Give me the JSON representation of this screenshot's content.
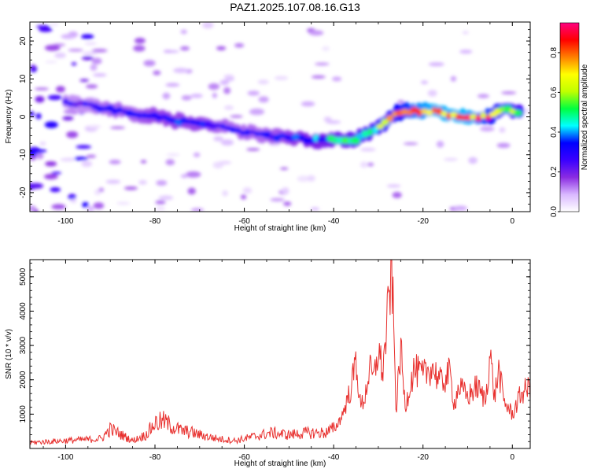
{
  "title": "PAZ1.2025.107.08.16.G13",
  "chart_data": [
    {
      "type": "heatmap",
      "xlabel": "Height of straight line (km)",
      "ylabel": "Frequency (Hz)",
      "xlim": [
        -108,
        4
      ],
      "ylim": [
        -25,
        25
      ],
      "xticks": [
        -100,
        -80,
        -60,
        -40,
        -20,
        0
      ],
      "yticks": [
        -20,
        -10,
        0,
        10,
        20
      ],
      "colorbar": {
        "label": "Normalized spectral amplitude",
        "ticks": [
          0.0,
          0.2,
          0.4,
          0.6,
          0.8
        ],
        "range": [
          0,
          0.95
        ],
        "colors": [
          "#ffffff",
          "#d9b8ff",
          "#8a2be2",
          "#3a00ff",
          "#0000ff",
          "#00ffff",
          "#00ff40",
          "#c0ff00",
          "#ffff00",
          "#ff8000",
          "#ff0000",
          "#ff0080"
        ]
      },
      "ridge": {
        "x": [
          -100,
          -95,
          -90,
          -85,
          -80,
          -75,
          -70,
          -65,
          -60,
          -55,
          -50,
          -45,
          -40,
          -35,
          -30,
          -26,
          -22,
          -18,
          -14,
          -10,
          -5,
          -2,
          2
        ],
        "y": [
          4,
          3,
          2,
          1,
          0,
          -1,
          -2,
          -2.5,
          -4,
          -5,
          -5.5,
          -6,
          -6,
          -6,
          -3,
          1,
          1.5,
          1.5,
          0.5,
          0,
          0,
          2,
          1
        ],
        "amplitude": [
          0.25,
          0.25,
          0.3,
          0.3,
          0.35,
          0.35,
          0.35,
          0.3,
          0.3,
          0.3,
          0.35,
          0.4,
          0.45,
          0.5,
          0.55,
          0.75,
          0.85,
          0.9,
          0.9,
          0.9,
          0.8,
          0.6,
          0.55
        ]
      }
    },
    {
      "type": "line",
      "xlabel": "Height of straight line (km)",
      "ylabel": "SNR (10 * v/v)",
      "xlim": [
        -108,
        4
      ],
      "ylim": [
        0,
        5500
      ],
      "xticks": [
        -100,
        -80,
        -60,
        -40,
        -20,
        0
      ],
      "yticks": [
        1000,
        2000,
        3000,
        4000,
        5000
      ],
      "color": "#e8302e",
      "series": [
        {
          "x": [
            -108,
            -100,
            -92,
            -90,
            -85,
            -82,
            -80,
            -78,
            -76,
            -74,
            -72,
            -70,
            -66,
            -62,
            -58,
            -54,
            -50,
            -46,
            -42,
            -40,
            -38,
            -36,
            -35,
            -34,
            -33,
            -32,
            -31,
            -30,
            -29,
            -28,
            -27,
            -26,
            -25,
            -24,
            -23,
            -22,
            -20,
            -18,
            -16,
            -14,
            -13,
            -12,
            -10,
            -8,
            -6,
            -5,
            -4,
            -3,
            -2,
            0,
            2,
            4
          ],
          "y": [
            150,
            200,
            250,
            500,
            200,
            350,
            650,
            700,
            550,
            450,
            420,
            350,
            250,
            200,
            300,
            400,
            350,
            400,
            400,
            500,
            1000,
            1800,
            2600,
            1200,
            1500,
            2300,
            2000,
            2900,
            2200,
            3700,
            5300,
            1100,
            2900,
            1200,
            1800,
            2300,
            2100,
            2400,
            1900,
            2200,
            1300,
            1800,
            1500,
            1800,
            1400,
            2800,
            1500,
            2300,
            1400,
            1000,
            1600,
            1800
          ]
        }
      ]
    }
  ]
}
